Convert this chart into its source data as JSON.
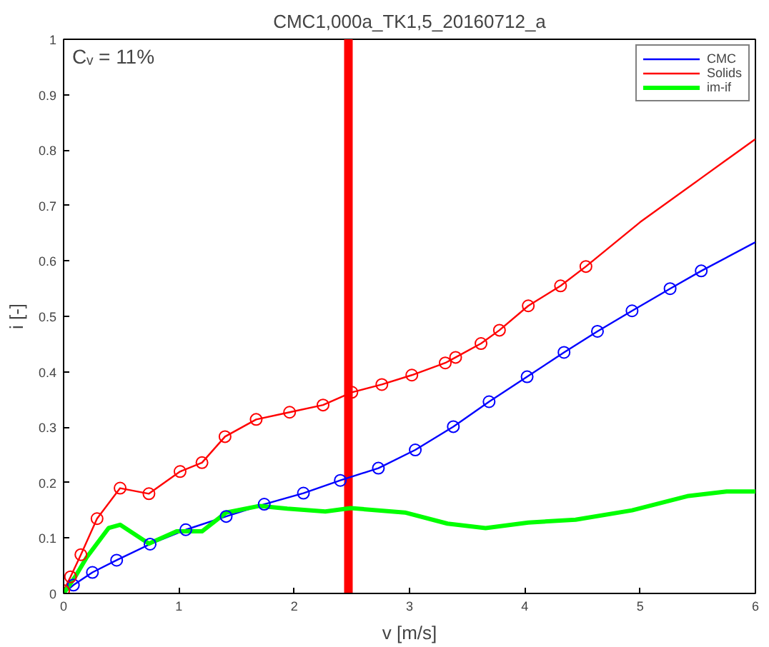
{
  "chart_data": {
    "type": "line",
    "title": "CMC1,000a_TK1,5_20160712_a",
    "xlabel": "v [m/s]",
    "ylabel": "i [-]",
    "annotations": [
      "Cᵥ = 11%"
    ],
    "xlim": [
      0,
      6
    ],
    "ylim": [
      0,
      1
    ],
    "xticks": [
      0,
      1,
      2,
      3,
      4,
      5,
      6
    ],
    "yticks": [
      0,
      0.1,
      0.2,
      0.3,
      0.4,
      0.5,
      0.6,
      0.7,
      0.8,
      0.9,
      1
    ],
    "grid": false,
    "legend": "top right",
    "series": [
      {
        "name": "CMC",
        "color": "#0000ff",
        "x": [
          0,
          0.085,
          0.25,
          0.46,
          0.75,
          1.06,
          1.41,
          1.74,
          2.08,
          2.4,
          2.73,
          3.05,
          3.38,
          3.69,
          4.02,
          4.34,
          4.63,
          4.93,
          5.26,
          5.53,
          6.0
        ],
        "values": [
          0,
          0.015,
          0.038,
          0.06,
          0.089,
          0.115,
          0.139,
          0.161,
          0.181,
          0.204,
          0.226,
          0.259,
          0.301,
          0.346,
          0.391,
          0.435,
          0.473,
          0.51,
          0.55,
          0.582,
          0.634
        ]
      },
      {
        "name": "Solids",
        "color": "#ff0000",
        "x": [
          0,
          0.06,
          0.15,
          0.29,
          0.49,
          0.74,
          1.01,
          1.2,
          1.4,
          1.67,
          1.96,
          2.25,
          2.5,
          2.76,
          3.02,
          3.31,
          3.4,
          3.62,
          3.78,
          4.03,
          4.31,
          4.53,
          5.0,
          5.5,
          6.0
        ],
        "values": [
          0.005,
          0.03,
          0.07,
          0.135,
          0.19,
          0.18,
          0.22,
          0.236,
          0.283,
          0.314,
          0.327,
          0.34,
          0.363,
          0.377,
          0.394,
          0.416,
          0.426,
          0.451,
          0.475,
          0.519,
          0.555,
          0.59,
          0.67,
          0.745,
          0.82
        ]
      },
      {
        "name": "im-if",
        "color": "#00ff00",
        "x": [
          0,
          0.1,
          0.2,
          0.39,
          0.49,
          0.74,
          0.98,
          1.2,
          1.41,
          1.7,
          1.94,
          2.27,
          2.49,
          2.96,
          3.33,
          3.66,
          4.03,
          4.44,
          4.93,
          5.42,
          5.75,
          6.0
        ],
        "values": [
          0,
          0.03,
          0.065,
          0.118,
          0.124,
          0.09,
          0.112,
          0.112,
          0.146,
          0.158,
          0.153,
          0.148,
          0.154,
          0.146,
          0.126,
          0.118,
          0.128,
          0.133,
          0.15,
          0.176,
          0.184,
          0.184
        ]
      },
      {
        "color": "#0000ff",
        "type": "scatter",
        "marker": "circle",
        "x": [
          0.085,
          0.25,
          0.46,
          0.75,
          1.06,
          1.41,
          1.74,
          2.08,
          2.4,
          2.73,
          3.05,
          3.38,
          3.69,
          4.02,
          4.34,
          4.63,
          4.93,
          5.26,
          5.53
        ],
        "values": [
          0.015,
          0.038,
          0.06,
          0.089,
          0.115,
          0.139,
          0.161,
          0.181,
          0.204,
          0.226,
          0.259,
          0.301,
          0.346,
          0.391,
          0.435,
          0.473,
          0.51,
          0.55,
          0.582
        ]
      },
      {
        "color": "#ff0000",
        "type": "scatter",
        "marker": "circle",
        "x": [
          0,
          0.06,
          0.15,
          0.29,
          0.49,
          0.74,
          1.01,
          1.2,
          1.4,
          1.67,
          1.96,
          2.25,
          2.5,
          2.76,
          3.02,
          3.31,
          3.4,
          3.62,
          3.78,
          4.03,
          4.31,
          4.53
        ],
        "values": [
          0.005,
          0.03,
          0.07,
          0.135,
          0.19,
          0.18,
          0.22,
          0.236,
          0.283,
          0.314,
          0.327,
          0.34,
          0.363,
          0.377,
          0.394,
          0.416,
          0.426,
          0.451,
          0.475,
          0.519,
          0.555,
          0.59
        ]
      }
    ],
    "ref_lines": [
      {
        "axis": "x",
        "value": 2.47,
        "color": "#ff0000"
      }
    ]
  }
}
